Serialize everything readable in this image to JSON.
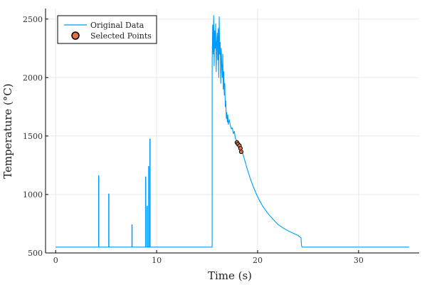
{
  "chart_data": {
    "type": "line",
    "xlabel": "Time (s)",
    "ylabel": "Temperature (°C)",
    "xlim": [
      -1,
      36
    ],
    "ylim": [
      500,
      2590
    ],
    "x_ticks": [
      0,
      10,
      20,
      30
    ],
    "y_ticks": [
      500,
      1000,
      1500,
      2000,
      2500
    ],
    "grid": true,
    "legend_position": "top-left",
    "colors": {
      "line": "#009af9",
      "points": "#e26f46",
      "axis": "#000000",
      "grid": "#e8e8e8"
    },
    "series": [
      {
        "name": "Original Data",
        "type": "line",
        "x": [
          0,
          4.25,
          4.25,
          4.28,
          4.28,
          5.25,
          5.25,
          5.28,
          5.28,
          7.55,
          7.55,
          7.58,
          7.58,
          8.9,
          8.9,
          8.93,
          8.93,
          9.05,
          9.05,
          9.08,
          9.08,
          9.2,
          9.2,
          9.23,
          9.23,
          9.33,
          9.33,
          9.36,
          9.36,
          15.5,
          15.5,
          15.55,
          15.6,
          15.65,
          15.7,
          15.75,
          15.8,
          15.85,
          15.9,
          15.95,
          16.0,
          16.05,
          16.1,
          16.15,
          16.2,
          16.25,
          16.3,
          16.35,
          16.4,
          16.45,
          16.5,
          16.55,
          16.6,
          16.65,
          16.7,
          16.75,
          16.8,
          16.85,
          16.9,
          16.95,
          17.0,
          17.05,
          17.1,
          17.2,
          17.3,
          17.4,
          17.5,
          17.6,
          17.7,
          17.8,
          17.9,
          18.0,
          18.2,
          18.4,
          18.6,
          18.8,
          19.0,
          19.3,
          19.6,
          20.0,
          20.5,
          21.0,
          21.5,
          22.0,
          22.5,
          23.0,
          23.5,
          24.0,
          24.3,
          24.35,
          24.4,
          24.5,
          25.0,
          30.0,
          35.0
        ],
        "y": [
          550,
          550,
          1160,
          1160,
          550,
          550,
          1005,
          1005,
          550,
          550,
          740,
          740,
          550,
          550,
          1150,
          1150,
          550,
          550,
          900,
          900,
          550,
          550,
          1240,
          1240,
          550,
          550,
          1475,
          1475,
          550,
          550,
          2150,
          2450,
          2200,
          2530,
          2100,
          2400,
          2250,
          2460,
          2050,
          2300,
          2380,
          2150,
          2420,
          2000,
          2520,
          2200,
          2300,
          1950,
          2250,
          2100,
          2000,
          2200,
          1900,
          2050,
          1850,
          1950,
          1750,
          1800,
          1650,
          1700,
          1620,
          1680,
          1600,
          1640,
          1590,
          1560,
          1570,
          1520,
          1540,
          1480,
          1465,
          1440,
          1415,
          1385,
          1330,
          1270,
          1210,
          1130,
          1060,
          980,
          900,
          840,
          790,
          745,
          715,
          690,
          670,
          650,
          630,
          560,
          550,
          550,
          550,
          550,
          550
        ]
      },
      {
        "name": "Selected Points",
        "type": "scatter",
        "x": [
          17.95,
          18.05,
          18.2,
          18.3,
          18.38
        ],
        "y": [
          1445,
          1432,
          1418,
          1395,
          1365
        ]
      }
    ]
  }
}
